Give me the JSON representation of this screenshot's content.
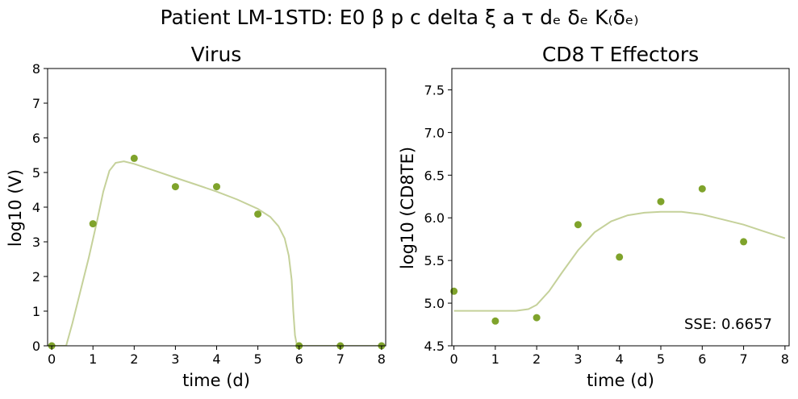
{
  "figure": {
    "suptitle": "Patient LM-1STD: E0 β p c delta ξ a τ dₑ δₑ K₍δₑ₎"
  },
  "colors": {
    "points": "#7fa32b",
    "curve": "#c5d19a"
  },
  "chart_data": [
    {
      "type": "scatter",
      "title": "Virus",
      "xlabel": "time (d)",
      "ylabel": "log10 (V)",
      "xlim": [
        -0.1,
        8.1
      ],
      "ylim": [
        0,
        8
      ],
      "xticks": [
        "0",
        "1",
        "2",
        "3",
        "4",
        "5",
        "6",
        "7",
        "8"
      ],
      "yticks": [
        "0",
        "1",
        "2",
        "3",
        "4",
        "5",
        "6",
        "7",
        "8"
      ],
      "series": [
        {
          "kind": "points",
          "x": [
            0,
            1,
            2,
            3,
            4,
            5,
            6,
            7,
            8
          ],
          "y": [
            0,
            3.52,
            5.41,
            4.59,
            4.59,
            3.8,
            0,
            0,
            0
          ]
        },
        {
          "kind": "line",
          "x": [
            0,
            0.2,
            0.35,
            0.5,
            0.7,
            0.9,
            1.1,
            1.25,
            1.4,
            1.55,
            1.75,
            2.0,
            2.5,
            3.0,
            3.5,
            4.0,
            4.5,
            5.0,
            5.3,
            5.5,
            5.65,
            5.75,
            5.82,
            5.86,
            5.9,
            5.95,
            6.0,
            6.5,
            7.0,
            7.5,
            8.0
          ],
          "y": [
            0,
            0,
            0,
            0.65,
            1.6,
            2.55,
            3.6,
            4.45,
            5.05,
            5.28,
            5.32,
            5.25,
            5.05,
            4.85,
            4.65,
            4.45,
            4.22,
            3.95,
            3.72,
            3.45,
            3.1,
            2.6,
            1.9,
            1.0,
            0.3,
            0,
            0,
            0,
            0,
            0,
            0
          ]
        }
      ]
    },
    {
      "type": "scatter",
      "title": "CD8 T Effectors",
      "xlabel": "time (d)",
      "ylabel": "log10 (CD8TE)",
      "xlim": [
        -0.05,
        8.1
      ],
      "ylim": [
        4.5,
        7.75
      ],
      "xticks": [
        "0",
        "1",
        "2",
        "3",
        "4",
        "5",
        "6",
        "7",
        "8"
      ],
      "yticks": [
        "4.5",
        "5.0",
        "5.5",
        "6.0",
        "6.5",
        "7.0",
        "7.5"
      ],
      "annotation": "SSE: 0.6657",
      "series": [
        {
          "kind": "points",
          "x": [
            0,
            1,
            2,
            3,
            4,
            5,
            6,
            7
          ],
          "y": [
            5.14,
            4.79,
            4.83,
            5.92,
            5.54,
            6.19,
            6.34,
            5.72
          ]
        },
        {
          "kind": "line",
          "x": [
            0,
            0.5,
            1.0,
            1.5,
            1.8,
            2.0,
            2.3,
            2.6,
            3.0,
            3.4,
            3.8,
            4.2,
            4.6,
            5.0,
            5.5,
            6.0,
            6.5,
            7.0,
            7.5,
            8.0
          ],
          "y": [
            4.91,
            4.91,
            4.91,
            4.91,
            4.93,
            4.98,
            5.14,
            5.35,
            5.62,
            5.83,
            5.96,
            6.03,
            6.06,
            6.07,
            6.07,
            6.04,
            5.98,
            5.92,
            5.84,
            5.76
          ]
        }
      ]
    }
  ]
}
